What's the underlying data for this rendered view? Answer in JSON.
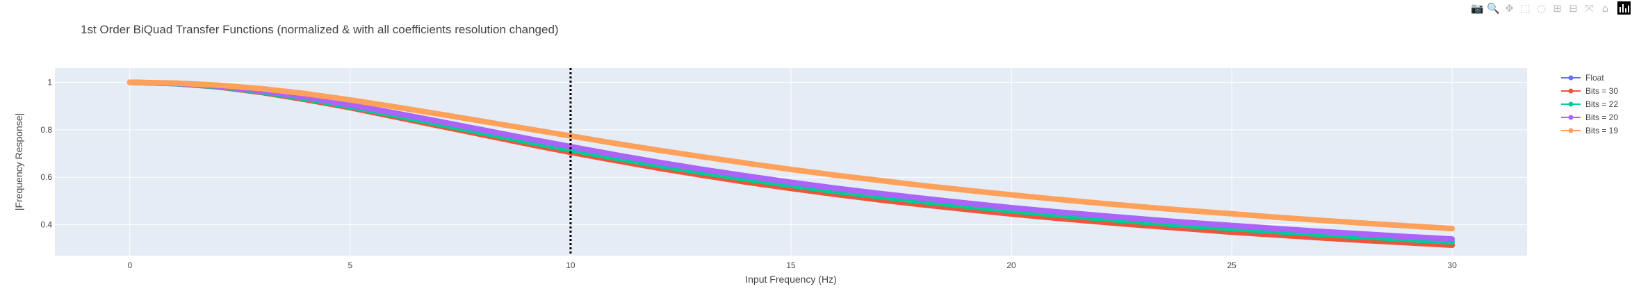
{
  "modebar": {
    "buttons": [
      {
        "name": "camera-icon",
        "glyph": "📷",
        "active": false
      },
      {
        "name": "zoom-icon",
        "glyph": "🔍",
        "active": true
      },
      {
        "name": "pan-icon",
        "glyph": "✥",
        "active": false
      },
      {
        "name": "box-select-icon",
        "glyph": "⬚",
        "active": false
      },
      {
        "name": "lasso-select-icon",
        "glyph": "◌",
        "active": false
      },
      {
        "name": "zoom-in-icon",
        "glyph": "⊞",
        "active": false
      },
      {
        "name": "zoom-out-icon",
        "glyph": "⊟",
        "active": false
      },
      {
        "name": "autoscale-icon",
        "glyph": "⤧",
        "active": false
      },
      {
        "name": "reset-axes-icon",
        "glyph": "⌂",
        "active": false
      }
    ],
    "logo_icon": "plotly-logo-icon"
  },
  "chart_data": {
    "type": "line",
    "title": "1st Order BiQuad Transfer Functions (normalized & with all coefficients resolution changed)",
    "xlabel": "Input Frequency (Hz)",
    "ylabel": "|Frequency Response|",
    "xlim": [
      -1.7,
      31.7
    ],
    "ylim": [
      0.27,
      1.06
    ],
    "xticks": [
      0,
      5,
      10,
      15,
      20,
      25,
      30
    ],
    "yticks": [
      0.4,
      0.6,
      0.8,
      1
    ],
    "grid": true,
    "legend_position": "top-right",
    "background": "#E5ECF6",
    "vline": {
      "x": 10,
      "style": "dotted",
      "color": "#000000"
    },
    "x": [
      0,
      1,
      2,
      3,
      4,
      5,
      6,
      7,
      8,
      9,
      10,
      11,
      12,
      13,
      14,
      15,
      16,
      17,
      18,
      19,
      20,
      21,
      22,
      23,
      24,
      25,
      26,
      27,
      28,
      29,
      30
    ],
    "series": [
      {
        "name": "Float",
        "color": "#636EFA",
        "values": [
          1.0,
          0.995,
          0.981,
          0.958,
          0.928,
          0.894,
          0.857,
          0.819,
          0.781,
          0.743,
          0.707,
          0.673,
          0.64,
          0.61,
          0.581,
          0.555,
          0.53,
          0.507,
          0.486,
          0.466,
          0.447,
          0.43,
          0.414,
          0.399,
          0.385,
          0.371,
          0.359,
          0.347,
          0.336,
          0.326,
          0.316
        ]
      },
      {
        "name": "Bits = 30",
        "color": "#EF553B",
        "values": [
          1.0,
          0.995,
          0.981,
          0.957,
          0.927,
          0.893,
          0.855,
          0.817,
          0.779,
          0.741,
          0.705,
          0.671,
          0.638,
          0.608,
          0.579,
          0.553,
          0.528,
          0.505,
          0.484,
          0.464,
          0.445,
          0.428,
          0.412,
          0.397,
          0.383,
          0.369,
          0.357,
          0.345,
          0.334,
          0.324,
          0.314
        ]
      },
      {
        "name": "Bits = 22",
        "color": "#00CC96",
        "values": [
          1.0,
          0.995,
          0.982,
          0.96,
          0.931,
          0.898,
          0.862,
          0.825,
          0.788,
          0.751,
          0.716,
          0.682,
          0.65,
          0.62,
          0.592,
          0.566,
          0.541,
          0.519,
          0.498,
          0.478,
          0.459,
          0.442,
          0.426,
          0.411,
          0.397,
          0.384,
          0.372,
          0.36,
          0.349,
          0.338,
          0.328
        ]
      },
      {
        "name": "Bits = 20",
        "color": "#AB63FA",
        "values": [
          1.0,
          0.996,
          0.984,
          0.964,
          0.937,
          0.905,
          0.871,
          0.836,
          0.8,
          0.764,
          0.729,
          0.695,
          0.663,
          0.633,
          0.605,
          0.579,
          0.554,
          0.532,
          0.511,
          0.491,
          0.472,
          0.455,
          0.439,
          0.424,
          0.41,
          0.397,
          0.384,
          0.372,
          0.361,
          0.35,
          0.34
        ]
      },
      {
        "name": "Bits = 19",
        "color": "#FFA15A",
        "values": [
          1.0,
          0.997,
          0.988,
          0.973,
          0.952,
          0.926,
          0.897,
          0.867,
          0.836,
          0.805,
          0.774,
          0.743,
          0.714,
          0.686,
          0.659,
          0.633,
          0.609,
          0.587,
          0.565,
          0.545,
          0.526,
          0.508,
          0.491,
          0.475,
          0.46,
          0.446,
          0.432,
          0.419,
          0.407,
          0.395,
          0.384
        ]
      }
    ]
  }
}
